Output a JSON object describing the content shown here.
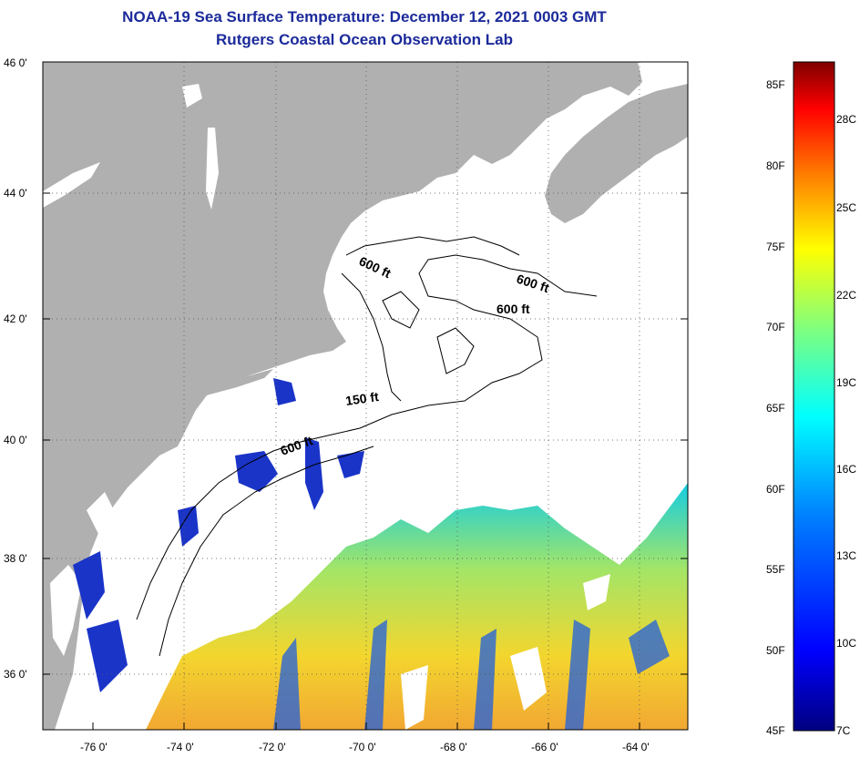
{
  "header": {
    "title": "NOAA-19 Sea Surface Temperature:  December 12, 2021 0003 GMT",
    "subtitle": "Rutgers Coastal Ocean Observation Lab"
  },
  "map": {
    "lat_labels": [
      "46 0'",
      "44 0'",
      "42 0'",
      "40 0'",
      "38 0'",
      "36 0'"
    ],
    "lon_labels": [
      "-76 0'",
      "-74 0'",
      "-72 0'",
      "-70 0'",
      "-68 0'",
      "-66 0'",
      "-64 0'"
    ],
    "contour_labels": [
      "600 ft",
      "600 ft",
      "600 ft",
      "150 ft",
      "600 ft"
    ],
    "land_color": "#b0b0b0",
    "ocean_color": "#ffffff"
  },
  "colorbar": {
    "fahrenheit_labels": [
      "85F",
      "80F",
      "75F",
      "70F",
      "65F",
      "60F",
      "55F",
      "50F",
      "45F"
    ],
    "celsius_labels": [
      "28C",
      "25C",
      "22C",
      "19C",
      "16C",
      "13C",
      "10C",
      "7C"
    ],
    "colors": [
      "#00007f",
      "#0000ff",
      "#007fff",
      "#00ffff",
      "#7fff7f",
      "#ffff00",
      "#ff7f00",
      "#ff0000",
      "#7f0000"
    ]
  }
}
